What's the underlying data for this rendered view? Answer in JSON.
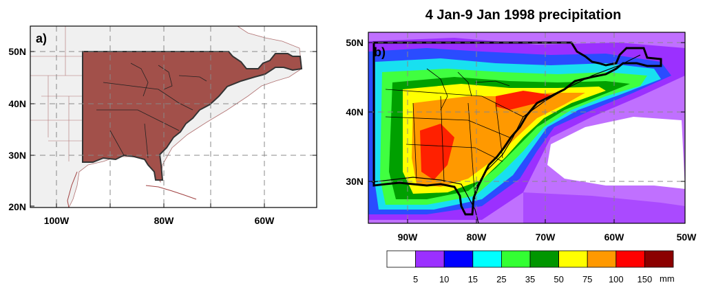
{
  "figure": {
    "title": "4 Jan-9 Jan 1998 precipitation"
  },
  "panel_a": {
    "label": "a)",
    "lon_ticks": [
      "100W",
      "80W",
      "60W"
    ],
    "lat_ticks": [
      "50N",
      "40N",
      "30N",
      "20N"
    ],
    "shade_color": "#a2504a",
    "outline_color": "#333333"
  },
  "panel_b": {
    "label": "b)",
    "lon_ticks": [
      "90W",
      "80W",
      "70W",
      "60W",
      "50W"
    ],
    "lat_ticks": [
      "50N",
      "40N",
      "30N"
    ]
  },
  "colorbar": {
    "tick_labels": [
      "5",
      "10",
      "15",
      "25",
      "35",
      "50",
      "75",
      "100",
      "150"
    ],
    "unit": "mm",
    "colors": [
      "#ffffff",
      "#9b30ff",
      "#0000ff",
      "#00ffff",
      "#33ff33",
      "#009600",
      "#ffff00",
      "#ff9900",
      "#ff0000",
      "#8b0000"
    ]
  }
}
